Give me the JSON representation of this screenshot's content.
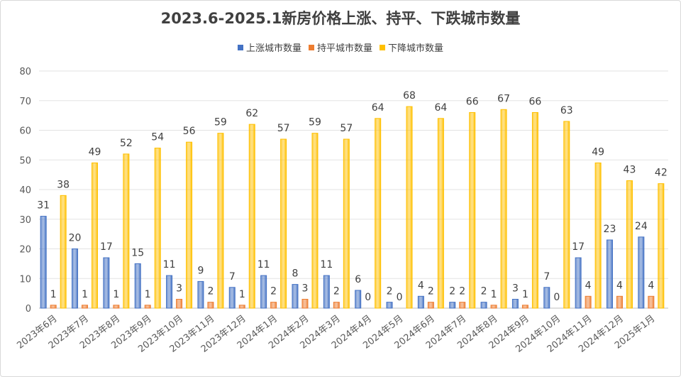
{
  "chart_data": {
    "type": "bar",
    "title": "2023.6-2025.1新房价格上涨、持平、下跌城市数量",
    "categories": [
      "2023年6月",
      "2023年7月",
      "2023年8月",
      "2023年9月",
      "2023年10月",
      "2023年11月",
      "2023年12月",
      "2024年1月",
      "2024年2月",
      "2024年3月",
      "2024年4月",
      "2024年5月",
      "2024年6月",
      "2024年7月",
      "2024年8月",
      "2024年9月",
      "2024年10月",
      "2024年11月",
      "2024年12月",
      "2025年1月"
    ],
    "series": [
      {
        "name": "上涨城市数量",
        "color": "#4472c4",
        "values": [
          31,
          20,
          17,
          15,
          11,
          9,
          7,
          11,
          8,
          11,
          6,
          2,
          4,
          2,
          2,
          3,
          7,
          17,
          23,
          24
        ]
      },
      {
        "name": "持平城市数量",
        "color": "#ed7d31",
        "values": [
          1,
          1,
          1,
          1,
          3,
          2,
          1,
          2,
          3,
          2,
          0,
          0,
          2,
          2,
          1,
          1,
          0,
          4,
          4,
          4
        ]
      },
      {
        "name": "下降城市数量",
        "color": "#ffc000",
        "values": [
          38,
          49,
          52,
          54,
          56,
          59,
          62,
          57,
          59,
          57,
          64,
          68,
          64,
          66,
          67,
          66,
          63,
          49,
          43,
          42
        ]
      }
    ],
    "ylim": [
      0,
      80
    ],
    "yticks": [
      0,
      10,
      20,
      30,
      40,
      50,
      60,
      70,
      80
    ],
    "grid": true,
    "legend": "top"
  }
}
